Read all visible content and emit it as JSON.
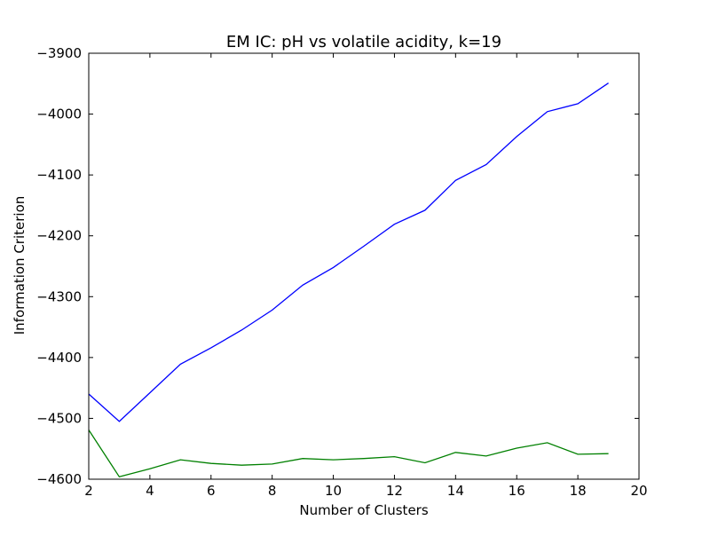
{
  "chart_data": {
    "type": "line",
    "title": "EM IC: pH vs volatile acidity, k=19",
    "xlabel": "Number of Clusters",
    "ylabel": "Information Criterion",
    "xlim": [
      2,
      20
    ],
    "ylim": [
      -4600,
      -3900
    ],
    "xticks": [
      2,
      4,
      6,
      8,
      10,
      12,
      14,
      16,
      18,
      20
    ],
    "yticks": [
      -3900,
      -4000,
      -4100,
      -4200,
      -4300,
      -4400,
      -4500,
      -4600
    ],
    "grid": false,
    "x": [
      2,
      3,
      4,
      5,
      6,
      7,
      8,
      9,
      10,
      11,
      12,
      13,
      14,
      15,
      16,
      17,
      18,
      19
    ],
    "series": [
      {
        "color": "#0000ff",
        "values": [
          -4460,
          -4505,
          -4458,
          -4411,
          -4384,
          -4355,
          -4322,
          -4281,
          -4252,
          -4217,
          -4181,
          -4158,
          -4109,
          -4083,
          -4037,
          -3996,
          -3983,
          -3949
        ]
      },
      {
        "color": "#008000",
        "values": [
          -4519,
          -4596,
          -4583,
          -4568,
          -4574,
          -4577,
          -4575,
          -4566,
          -4568,
          -4566,
          -4563,
          -4573,
          -4556,
          -4562,
          -4549,
          -4540,
          -4559,
          -4558
        ]
      }
    ]
  }
}
